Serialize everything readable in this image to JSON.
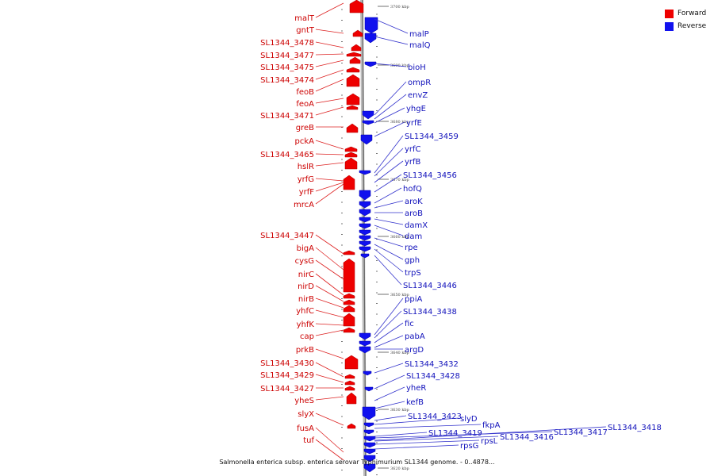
{
  "caption": "Salmonella enterica subsp. enterica serovar Typhimurium SL1344 genome. - 0..4878...",
  "colors": {
    "forward": "#ee0000",
    "reverse": "#1111ee",
    "backbone": "#999999",
    "label_forward": "#cc0000",
    "label_reverse": "#1111bb"
  },
  "legend": [
    {
      "label": "Forward",
      "color": "#ee0000"
    },
    {
      "label": "Reverse",
      "color": "#1111ee"
    }
  ],
  "scale_ticks": [
    {
      "kbp": 3700,
      "label": "3700 kbp"
    },
    {
      "kbp": 3690,
      "label": "3690 kbp"
    },
    {
      "kbp": 3680,
      "label": "3680 kbp"
    },
    {
      "kbp": 3670,
      "label": "3670 kbp"
    },
    {
      "kbp": 3660,
      "label": "3660 kbp"
    },
    {
      "kbp": 3650,
      "label": "3650 kbp"
    },
    {
      "kbp": 3640,
      "label": "3640 kbp"
    },
    {
      "kbp": 3630,
      "label": "3630 kbp"
    },
    {
      "kbp": 3620,
      "label": "3620 kbp"
    }
  ],
  "forward_genes": [
    "malT",
    "gntT",
    "SL1344_3478",
    "SL1344_3477",
    "SL1344_3475",
    "SL1344_3474",
    "feoB",
    "feoA",
    "SL1344_3471",
    "greB",
    "pckA",
    "SL1344_3465",
    "hslR",
    "yrfG",
    "yrfF",
    "mrcA",
    "SL1344_3447",
    "bigA",
    "cysG",
    "nirC",
    "nirD",
    "nirB",
    "yhfC",
    "yhfK",
    "cap",
    "prkB",
    "SL1344_3430",
    "SL1344_3429",
    "SL1344_3427",
    "yheS",
    "slyX",
    "fusA",
    "tuf"
  ],
  "reverse_genes": [
    "malP",
    "malQ",
    "bioH",
    "ompR",
    "envZ",
    "yhgE",
    "yrfE",
    "SL1344_3459",
    "yrfC",
    "yrfB",
    "SL1344_3456",
    "hofQ",
    "aroK",
    "aroB",
    "damX",
    "dam",
    "rpe",
    "gph",
    "trpS",
    "SL1344_3446",
    "ppiA",
    "SL1344_3438",
    "fic",
    "pabA",
    "argD",
    "SL1344_3432",
    "SL1344_3428",
    "yheR",
    "kefB",
    "SL1344_3423",
    "slyD",
    "fkpA",
    "SL1344_3419",
    "SL1344_3417",
    "SL1344_3418",
    "SL1344_3416",
    "rpsL",
    "rpsG"
  ]
}
